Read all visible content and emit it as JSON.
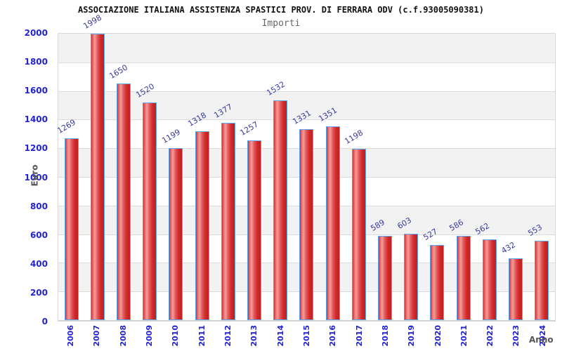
{
  "header": {
    "title": "ASSOCIAZIONE ITALIANA ASSISTENZA SPASTICI PROV. DI FERRARA ODV (c.f.93005090381)",
    "subtitle": "Importi"
  },
  "chart_data": {
    "type": "bar",
    "title": "ASSOCIAZIONE ITALIANA ASSISTENZA SPASTICI PROV. DI FERRARA ODV (c.f.93005090381)",
    "subtitle": "Importi",
    "xlabel": "Anno",
    "ylabel": "Euro",
    "categories": [
      "2006",
      "2007",
      "2008",
      "2009",
      "2010",
      "2011",
      "2012",
      "2013",
      "2014",
      "2015",
      "2016",
      "2017",
      "2018",
      "2019",
      "2020",
      "2021",
      "2022",
      "2023",
      "2024"
    ],
    "values": [
      1269,
      1998,
      1650,
      1520,
      1199,
      1318,
      1377,
      1257,
      1532,
      1331,
      1351,
      1198,
      589,
      603,
      527,
      586,
      562,
      432,
      553
    ],
    "ylim": [
      0,
      2000
    ],
    "yticks": [
      0,
      200,
      400,
      600,
      800,
      1000,
      1200,
      1400,
      1600,
      1800,
      2000
    ],
    "grid": true,
    "legend": "none",
    "value_labels_rotated": true,
    "colors": {
      "bar_fill": "#d03030",
      "bar_highlight": "#f49c9c",
      "bar_border": "#58a8f0",
      "tick_label": "#2424d0",
      "value_label": "#3a3a9c",
      "axis_title": "#555555",
      "band_gray": "#f2f2f2",
      "band_white": "#ffffff",
      "gridline": "#dcdcdc"
    }
  }
}
